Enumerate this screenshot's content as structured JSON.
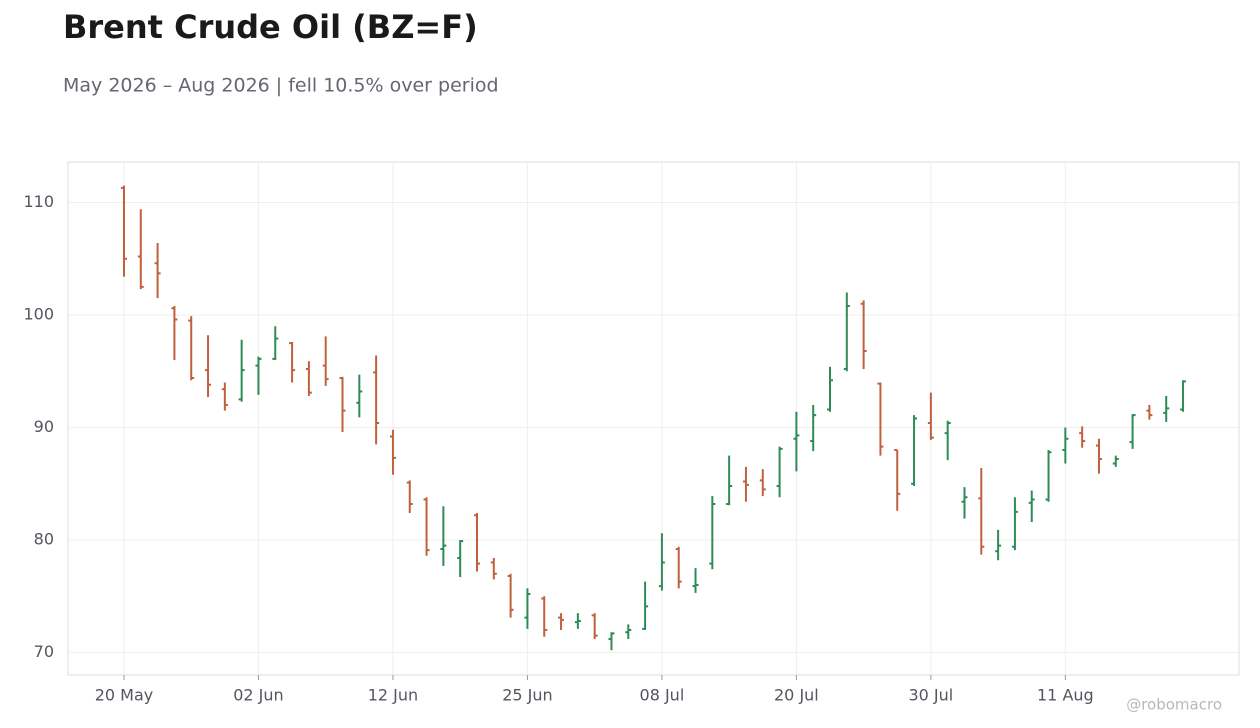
{
  "chart_data": {
    "type": "ohlc",
    "title": "Brent Crude Oil (BZ=F)",
    "subtitle": "May 2026 – Aug 2026 | fell 10.5% over period",
    "watermark": "@robomacro",
    "categories": [
      "20 May",
      null,
      null,
      null,
      null,
      null,
      null,
      null,
      "02 Jun",
      null,
      null,
      null,
      null,
      null,
      null,
      null,
      "12 Jun",
      null,
      null,
      null,
      null,
      null,
      null,
      null,
      "25 Jun",
      null,
      null,
      null,
      null,
      null,
      null,
      null,
      "08 Jul",
      null,
      null,
      null,
      null,
      null,
      null,
      null,
      "20 Jul",
      null,
      null,
      null,
      null,
      null,
      null,
      null,
      "30 Jul",
      null,
      null,
      null,
      null,
      null,
      null,
      null,
      "11 Aug",
      null,
      null,
      null,
      null,
      null,
      null,
      null
    ],
    "open": [
      111.3,
      105.2,
      104.6,
      100.6,
      99.5,
      95.1,
      93.4,
      92.5,
      95.5,
      96.1,
      97.5,
      95.2,
      95.5,
      94.4,
      92.2,
      94.9,
      89.2,
      85.1,
      83.6,
      79.2,
      78.4,
      82.2,
      78.0,
      76.8,
      73.1,
      74.8,
      73.1,
      72.7,
      73.3,
      71.2,
      71.8,
      72.1,
      75.9,
      79.2,
      75.9,
      77.9,
      83.2,
      85.2,
      85.3,
      84.8,
      89.0,
      88.8,
      91.6,
      95.2,
      101.0,
      93.9,
      88.0,
      85.0,
      90.4,
      89.5,
      83.4,
      83.7,
      79.0,
      79.4,
      83.3,
      83.6,
      88.0,
      89.5,
      88.4,
      86.8,
      88.7,
      91.5,
      91.3,
      91.6
    ],
    "high": [
      111.5,
      109.4,
      106.4,
      100.8,
      99.9,
      98.2,
      94.0,
      97.8,
      96.3,
      99.0,
      97.6,
      95.9,
      98.1,
      94.5,
      94.7,
      96.4,
      89.8,
      85.3,
      83.8,
      83.0,
      80.0,
      82.4,
      78.4,
      77.0,
      75.7,
      75.0,
      73.5,
      73.5,
      73.5,
      71.8,
      72.5,
      76.3,
      80.6,
      79.4,
      77.5,
      83.9,
      87.5,
      86.5,
      86.3,
      88.3,
      91.4,
      92.0,
      95.4,
      102.0,
      101.3,
      94.0,
      88.0,
      91.1,
      93.1,
      90.6,
      84.7,
      86.4,
      80.9,
      83.8,
      84.4,
      88.0,
      90.0,
      90.1,
      89.0,
      87.5,
      91.2,
      92.0,
      92.8,
      94.2
    ],
    "low": [
      103.4,
      102.3,
      101.5,
      96.0,
      94.2,
      92.7,
      91.5,
      92.3,
      92.9,
      96.0,
      94.0,
      92.8,
      93.7,
      89.6,
      90.9,
      88.5,
      85.8,
      82.4,
      78.6,
      77.7,
      76.7,
      77.2,
      76.5,
      73.1,
      72.1,
      71.4,
      72.0,
      72.1,
      71.2,
      70.2,
      71.2,
      72.0,
      75.5,
      75.7,
      75.3,
      77.4,
      83.1,
      83.4,
      83.9,
      83.8,
      86.1,
      87.9,
      91.4,
      95.0,
      95.2,
      87.5,
      82.6,
      84.8,
      88.9,
      87.1,
      81.9,
      78.7,
      78.2,
      79.1,
      81.6,
      83.4,
      86.8,
      88.2,
      85.9,
      86.5,
      88.1,
      90.7,
      90.5,
      91.4
    ],
    "close": [
      105.0,
      102.5,
      103.7,
      99.6,
      94.4,
      93.8,
      92.0,
      95.1,
      96.1,
      97.9,
      95.1,
      93.1,
      94.3,
      91.5,
      93.2,
      90.4,
      87.3,
      83.2,
      79.1,
      79.5,
      79.9,
      77.9,
      77.0,
      73.8,
      75.2,
      72.0,
      72.9,
      72.8,
      71.5,
      71.7,
      72.0,
      74.1,
      78.0,
      76.3,
      76.0,
      83.2,
      84.8,
      84.9,
      84.5,
      88.1,
      89.3,
      91.1,
      94.2,
      100.8,
      96.8,
      88.3,
      84.1,
      90.8,
      89.1,
      90.4,
      83.8,
      79.4,
      79.5,
      82.5,
      83.6,
      87.8,
      89.0,
      88.8,
      87.2,
      87.2,
      91.1,
      91.1,
      91.7,
      94.1
    ],
    "up_color": "#2e8b57",
    "down_color": "#c0603c",
    "ylim": [
      68.0,
      113.6
    ],
    "yticks": [
      70,
      80,
      90,
      100,
      110
    ],
    "grid": true
  }
}
